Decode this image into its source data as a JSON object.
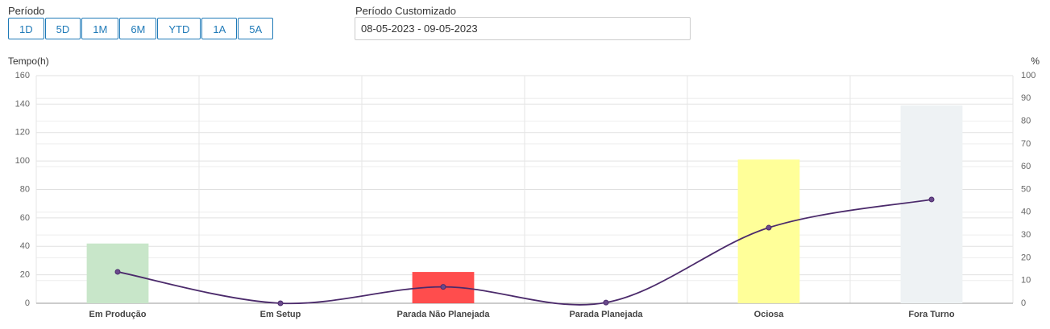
{
  "controls": {
    "period_label": "Período",
    "periods": [
      "1D",
      "5D",
      "1M",
      "6M",
      "YTD",
      "1A",
      "5A"
    ],
    "custom_label": "Período Customizado",
    "custom_value": "08-05-2023 - 09-05-2023"
  },
  "chart_data": {
    "type": "bar",
    "categories": [
      "Em Produção",
      "Em Setup",
      "Parada Não Planejada",
      "Parada Planejada",
      "Ociosa",
      "Fora Turno"
    ],
    "y_label": "Tempo(h)",
    "y2_label": "%",
    "series": [
      {
        "type": "bar",
        "colors": [
          "#c8e6c9",
          null,
          "#ff4d4d",
          null,
          "#ffff99",
          "#eef2f4"
        ],
        "values": [
          42,
          0,
          22,
          0.5,
          101,
          139
        ]
      },
      {
        "type": "line",
        "axis": "y2",
        "color": "#4b2a6b",
        "values": [
          13.8,
          0,
          7.2,
          0.3,
          33.2,
          45.6
        ]
      }
    ],
    "ylim": [
      0,
      160
    ],
    "yticks": [
      0,
      20,
      40,
      60,
      80,
      100,
      120,
      140,
      160
    ],
    "y2lim": [
      0,
      100
    ],
    "y2ticks": [
      0,
      10,
      20,
      30,
      40,
      50,
      60,
      70,
      80,
      90,
      100
    ],
    "grid": true
  }
}
